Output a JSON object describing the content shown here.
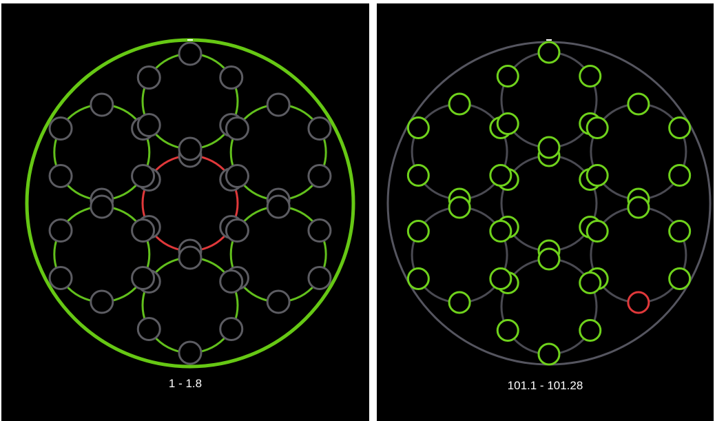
{
  "panels": [
    {
      "label": "1 - 1.8",
      "outer_ring_color": "#66c814",
      "ring_colors": [
        "#e0383a",
        "#62c01c",
        "#62c01c",
        "#62c01c",
        "#62c01c",
        "#62c01c",
        "#62c01c"
      ],
      "node_color": "#5c5c62",
      "highlighted_nodes": []
    },
    {
      "label": "101.1 - 101.28",
      "outer_ring_color": "#55555f",
      "ring_colors": [
        "#4a4a52",
        "#4a4a52",
        "#4a4a52",
        "#4a4a52",
        "#4a4a52",
        "#4a4a52",
        "#4a4a52"
      ],
      "node_color": "#6fd21c",
      "highlighted_nodes": [
        {
          "ring": 4,
          "node": 3,
          "color": "#e0383a"
        }
      ]
    }
  ],
  "colors": {
    "background": "#000000",
    "text": "#ffffff"
  }
}
